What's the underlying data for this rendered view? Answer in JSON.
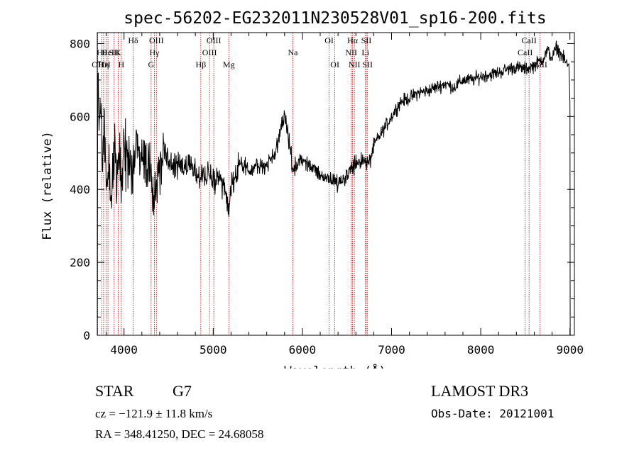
{
  "chart_data": {
    "type": "line",
    "title": "spec-56202-EG232011N230528V01_sp16-200.fits",
    "xlabel": "Wavelength (Å)",
    "ylabel": "Flux (relative)",
    "xlim": [
      3700,
      9050
    ],
    "ylim": [
      0,
      830
    ],
    "xticks": [
      4000,
      5000,
      6000,
      7000,
      8000,
      9000
    ],
    "yticks": [
      0,
      200,
      400,
      600,
      800
    ],
    "grid": false,
    "anchors": [
      [
        3700,
        300
      ],
      [
        3705,
        700
      ],
      [
        3712,
        780
      ],
      [
        3720,
        560
      ],
      [
        3740,
        640
      ],
      [
        3760,
        480
      ],
      [
        3780,
        560
      ],
      [
        3800,
        400
      ],
      [
        3830,
        440
      ],
      [
        3860,
        380
      ],
      [
        3890,
        520
      ],
      [
        3920,
        450
      ],
      [
        3950,
        470
      ],
      [
        3970,
        420
      ],
      [
        4000,
        510
      ],
      [
        4050,
        470
      ],
      [
        4101,
        470
      ],
      [
        4150,
        530
      ],
      [
        4200,
        500
      ],
      [
        4250,
        470
      ],
      [
        4300,
        460
      ],
      [
        4340,
        370
      ],
      [
        4380,
        440
      ],
      [
        4450,
        500
      ],
      [
        4550,
        460
      ],
      [
        4650,
        480
      ],
      [
        4750,
        450
      ],
      [
        4861,
        440
      ],
      [
        4950,
        430
      ],
      [
        5050,
        430
      ],
      [
        5150,
        380
      ],
      [
        5172,
        330
      ],
      [
        5200,
        410
      ],
      [
        5300,
        470
      ],
      [
        5400,
        450
      ],
      [
        5500,
        460
      ],
      [
        5600,
        470
      ],
      [
        5700,
        500
      ],
      [
        5750,
        560
      ],
      [
        5800,
        600
      ],
      [
        5850,
        540
      ],
      [
        5893,
        450
      ],
      [
        5950,
        470
      ],
      [
        6000,
        480
      ],
      [
        6100,
        460
      ],
      [
        6200,
        440
      ],
      [
        6300,
        430
      ],
      [
        6400,
        420
      ],
      [
        6500,
        440
      ],
      [
        6563,
        460
      ],
      [
        6650,
        480
      ],
      [
        6750,
        470
      ],
      [
        6800,
        520
      ],
      [
        6900,
        560
      ],
      [
        7000,
        600
      ],
      [
        7100,
        640
      ],
      [
        7200,
        650
      ],
      [
        7300,
        665
      ],
      [
        7400,
        670
      ],
      [
        7500,
        680
      ],
      [
        7600,
        690
      ],
      [
        7700,
        680
      ],
      [
        7800,
        700
      ],
      [
        7900,
        700
      ],
      [
        8000,
        710
      ],
      [
        8100,
        715
      ],
      [
        8200,
        720
      ],
      [
        8300,
        730
      ],
      [
        8400,
        735
      ],
      [
        8500,
        730
      ],
      [
        8600,
        740
      ],
      [
        8700,
        760
      ],
      [
        8750,
        780
      ],
      [
        8800,
        760
      ],
      [
        8850,
        790
      ],
      [
        8900,
        770
      ],
      [
        8950,
        750
      ],
      [
        8975,
        740
      ],
      [
        8990,
        740
      ],
      [
        9000,
        640
      ]
    ],
    "lines": [
      {
        "wave": 3705,
        "label": "OII",
        "row": 2
      },
      {
        "wave": 3750,
        "label": "Hθ",
        "row": 1
      },
      {
        "wave": 3771,
        "label": "Hη",
        "row": 2
      },
      {
        "wave": 3798,
        "label": "OI",
        "row": 2
      },
      {
        "wave": 3820,
        "label": "HeI",
        "row": 1
      },
      {
        "wave": 3889,
        "label": "SII",
        "row": 1
      },
      {
        "wave": 3934,
        "label": "K",
        "row": 1
      },
      {
        "wave": 3969,
        "label": "H",
        "row": 2
      },
      {
        "wave": 4102,
        "label": "Hδ",
        "row": 0
      },
      {
        "wave": 4304,
        "label": "G",
        "row": 2
      },
      {
        "wave": 4341,
        "label": "Hγ",
        "row": 1
      },
      {
        "wave": 4363,
        "label": "OIII",
        "row": 0
      },
      {
        "wave": 4861,
        "label": "Hβ",
        "row": 2
      },
      {
        "wave": 4959,
        "label": "OIII",
        "row": 1
      },
      {
        "wave": 5007,
        "label": "OIII",
        "row": 0
      },
      {
        "wave": 5175,
        "label": "Mg",
        "row": 2
      },
      {
        "wave": 5893,
        "label": "Na",
        "row": 1
      },
      {
        "wave": 6300,
        "label": "OI",
        "row": 0
      },
      {
        "wave": 6364,
        "label": "OI",
        "row": 2
      },
      {
        "wave": 6548,
        "label": "NII",
        "row": 1
      },
      {
        "wave": 6563,
        "label": "Hα",
        "row": 0
      },
      {
        "wave": 6583,
        "label": "NII",
        "row": 2
      },
      {
        "wave": 6707,
        "label": "Li",
        "row": 1
      },
      {
        "wave": 6717,
        "label": "SII",
        "row": 0
      },
      {
        "wave": 6731,
        "label": "SII",
        "row": 2
      },
      {
        "wave": 8498,
        "label": "CaII",
        "row": 1
      },
      {
        "wave": 8542,
        "label": "CaII",
        "row": 0
      },
      {
        "wave": 8662,
        "label": "CaII",
        "row": 2
      }
    ]
  },
  "info": {
    "object_class": "STAR",
    "subclass": "G7",
    "survey": "LAMOST DR3",
    "cz": "cz = −121.9 ± 11.8 km/s",
    "obs_date": "Obs-Date: 20121001",
    "radec": "RA = 348.41250, DEC =  24.68058"
  }
}
